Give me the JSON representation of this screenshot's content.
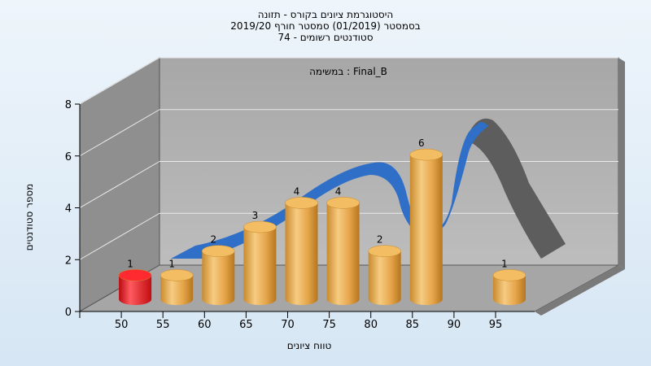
{
  "chart_data": {
    "type": "bar",
    "title_lines": [
      "היסטוגרמת ציונים בקורס - תזונה",
      "בסמסטר  (01/2019)  סמסטר חורף 2019/20",
      "סטודנטים רשומים - 74"
    ],
    "annotation": "במשימה : Final_B",
    "xlabel": "טווח ציונים",
    "ylabel": "מספר סטודנטים",
    "categories": [
      "50",
      "55",
      "60",
      "65",
      "70",
      "75",
      "80",
      "85",
      "90",
      "95"
    ],
    "values": [
      1,
      1,
      2,
      3,
      4,
      4,
      2,
      6,
      0,
      1
    ],
    "highlight_color": "#e8141b",
    "bar_color": "#e9a84a",
    "curve_color": "#2f6fc7",
    "ylim": [
      0,
      8
    ],
    "yticks": [
      0,
      2,
      4,
      6,
      8
    ]
  }
}
